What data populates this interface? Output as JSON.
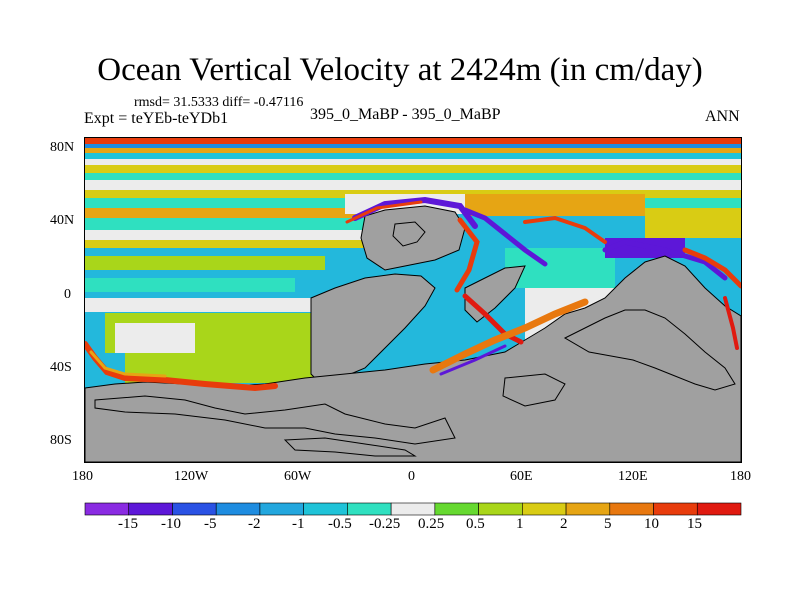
{
  "title": "Ocean Vertical Velocity at 2424m (in cm/day)",
  "stats": "rmsd= 31.5333  diff= -0.47116",
  "experiment": "Expt = teYEb-teYDb1",
  "case_label": "395_0_MaBP - 395_0_MaBP",
  "season": "ANN",
  "axes": {
    "y_ticks": [
      "80N",
      "40N",
      "0",
      "40S",
      "80S"
    ],
    "x_ticks": [
      "180",
      "120W",
      "60W",
      "0",
      "60E",
      "120E",
      "180"
    ]
  },
  "colorbar": {
    "labels": [
      "-15",
      "-10",
      "-5",
      "-2",
      "-1",
      "-0.5",
      "-0.25",
      "0.25",
      "0.5",
      "1",
      "2",
      "5",
      "10",
      "15"
    ],
    "colors": [
      "#8a2be2",
      "#5d17d8",
      "#2a52e4",
      "#1e8ce0",
      "#23a7de",
      "#1fc3d8",
      "#2fe0c0",
      "#ececec",
      "#66d930",
      "#a9d61a",
      "#d9cc14",
      "#e6a514",
      "#e8780f",
      "#e83c0c",
      "#e01a10"
    ]
  },
  "colors": {
    "land": "#a0a0a0",
    "ocean_base": "#23b8dc"
  }
}
